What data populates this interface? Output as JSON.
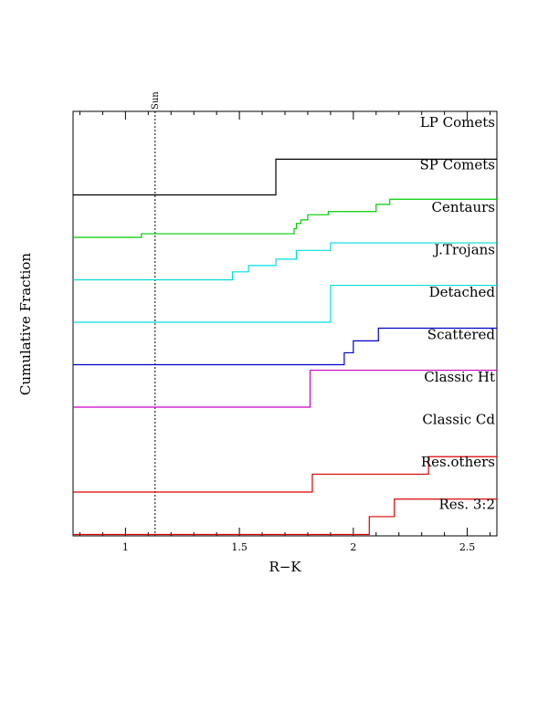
{
  "chart_data": {
    "type": "line",
    "title": "",
    "xlabel": "R−K",
    "ylabel": "Cumulative Fraction",
    "xlim": [
      0.77,
      2.63
    ],
    "xticks": [
      1,
      1.5,
      2,
      2.5
    ],
    "xtick_labels": [
      "1",
      "1.5",
      "2",
      "2.5"
    ],
    "grid": false,
    "reference_line": {
      "label": "Sun",
      "x": 1.13
    },
    "series": [
      {
        "name": "LP Comets",
        "color": "#000000",
        "steps": []
      },
      {
        "name": "SP Comets",
        "color": "#000000",
        "steps": [
          [
            0.77,
            0.0
          ],
          [
            1.66,
            0.9
          ],
          [
            2.63,
            0.9
          ]
        ]
      },
      {
        "name": "Centaurs",
        "color": "#00cc00",
        "steps": [
          [
            0.77,
            0.0
          ],
          [
            1.07,
            0.09
          ],
          [
            1.74,
            0.22
          ],
          [
            1.75,
            0.35
          ],
          [
            1.77,
            0.44
          ],
          [
            1.8,
            0.57
          ],
          [
            1.89,
            0.65
          ],
          [
            2.1,
            0.83
          ],
          [
            2.16,
            0.96
          ],
          [
            2.63,
            0.96
          ]
        ]
      },
      {
        "name": "J.Trojans",
        "color": "#00dddd",
        "steps": [
          [
            0.77,
            0.0
          ],
          [
            1.47,
            0.2
          ],
          [
            1.54,
            0.36
          ],
          [
            1.66,
            0.52
          ],
          [
            1.75,
            0.74
          ],
          [
            1.9,
            0.93
          ],
          [
            2.63,
            0.93
          ]
        ]
      },
      {
        "name": "Detached",
        "color": "#00dddd",
        "steps": [
          [
            0.77,
            0.0
          ],
          [
            1.9,
            0.93
          ],
          [
            2.63,
            0.93
          ]
        ]
      },
      {
        "name": "Scattered",
        "color": "#0000cc",
        "steps": [
          [
            0.77,
            0.0
          ],
          [
            1.96,
            0.3
          ],
          [
            2.0,
            0.6
          ],
          [
            2.11,
            0.92
          ],
          [
            2.63,
            0.92
          ]
        ]
      },
      {
        "name": "Classic Ht",
        "color": "#cc00cc",
        "steps": [
          [
            0.77,
            0.0
          ],
          [
            1.81,
            0.93
          ],
          [
            2.63,
            0.93
          ]
        ]
      },
      {
        "name": "Classic Cd",
        "color": "#000000",
        "steps": []
      },
      {
        "name": "Res.others",
        "color": "#dd0000",
        "steps": [
          [
            0.77,
            0.0
          ],
          [
            1.82,
            0.45
          ],
          [
            2.33,
            0.89
          ],
          [
            2.63,
            0.89
          ]
        ]
      },
      {
        "name": "Res. 3:2",
        "color": "#dd0000",
        "steps": [
          [
            0.77,
            0.0
          ],
          [
            2.07,
            0.45
          ],
          [
            2.18,
            0.89
          ],
          [
            2.63,
            0.89
          ]
        ]
      }
    ]
  }
}
